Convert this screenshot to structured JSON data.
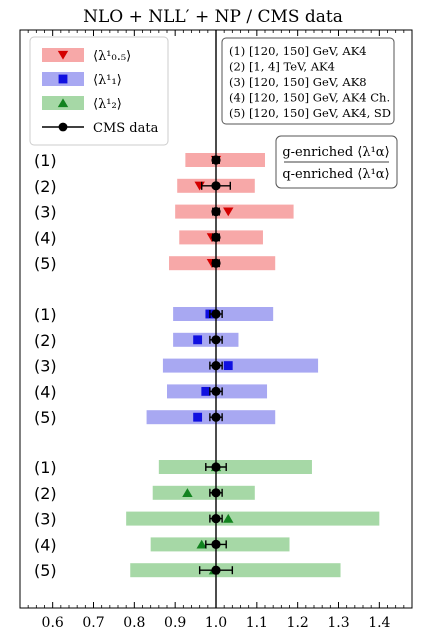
{
  "chart_data": {
    "type": "scatter",
    "title": "NLO + NLL′ + NP / CMS data",
    "xlabel": "",
    "ylabel": "",
    "xlim": [
      0.52,
      1.48
    ],
    "xticks": [
      "0.6",
      "0.7",
      "0.8",
      "0.9",
      "1.0",
      "1.1",
      "1.2",
      "1.3",
      "1.4"
    ],
    "grid": false,
    "reference_line": 1.0,
    "legend": {
      "placement": "top-left",
      "entries": [
        {
          "label": "⟨λ¹₀.₅⟩",
          "marker": "triangle-down",
          "color": "#d40000",
          "band": "#f7a8a8"
        },
        {
          "label": "⟨λ¹₁⟩",
          "marker": "square",
          "color": "#1010e0",
          "band": "#a8a8f2"
        },
        {
          "label": "⟨λ¹₂⟩",
          "marker": "triangle-up",
          "color": "#12831f",
          "band": "#a6d8a6"
        },
        {
          "label": "CMS data",
          "marker": "circle",
          "color": "#000000"
        }
      ]
    },
    "info_box": [
      "(1)  [120, 150] GeV, AK4",
      "(2)  [1, 4] TeV, AK4",
      "(3)  [120, 150] GeV, AK8",
      "(4)  [120, 150] GeV, AK4 Ch.",
      "(5)  [120, 150] GeV, AK4, SD"
    ],
    "enrich_box": [
      "g-enriched ⟨λ¹α⟩",
      "q-enriched ⟨λ¹α⟩"
    ],
    "groups": [
      {
        "name": "⟨λ¹₀.₅⟩",
        "rows": [
          {
            "label": "(1)",
            "band": [
              0.925,
              1.12
            ],
            "central": 1.0,
            "data": 1.0,
            "data_err": 0.008
          },
          {
            "label": "(2)",
            "band": [
              0.905,
              1.095
            ],
            "central": 0.96,
            "data": 1.0,
            "data_err": 0.035
          },
          {
            "label": "(3)",
            "band": [
              0.9,
              1.19
            ],
            "central": 1.03,
            "data": 1.0,
            "data_err": 0.008
          },
          {
            "label": "(4)",
            "band": [
              0.91,
              1.115
            ],
            "central": 0.99,
            "data": 1.0,
            "data_err": 0.008
          },
          {
            "label": "(5)",
            "band": [
              0.885,
              1.145
            ],
            "central": 0.99,
            "data": 1.0,
            "data_err": 0.008
          }
        ]
      },
      {
        "name": "⟨λ¹₁⟩",
        "rows": [
          {
            "label": "(1)",
            "band": [
              0.895,
              1.14
            ],
            "central": 0.985,
            "data": 1.0,
            "data_err": 0.015
          },
          {
            "label": "(2)",
            "band": [
              0.895,
              1.055
            ],
            "central": 0.955,
            "data": 1.0,
            "data_err": 0.015
          },
          {
            "label": "(3)",
            "band": [
              0.87,
              1.25
            ],
            "central": 1.03,
            "data": 1.0,
            "data_err": 0.015
          },
          {
            "label": "(4)",
            "band": [
              0.88,
              1.125
            ],
            "central": 0.975,
            "data": 1.0,
            "data_err": 0.015
          },
          {
            "label": "(5)",
            "band": [
              0.83,
              1.145
            ],
            "central": 0.955,
            "data": 1.0,
            "data_err": 0.015
          }
        ]
      },
      {
        "name": "⟨λ¹₂⟩",
        "rows": [
          {
            "label": "(1)",
            "band": [
              0.86,
              1.235
            ],
            "central": 1.0,
            "data": 1.0,
            "data_err": 0.025
          },
          {
            "label": "(2)",
            "band": [
              0.845,
              1.095
            ],
            "central": 0.93,
            "data": 1.0,
            "data_err": 0.015
          },
          {
            "label": "(3)",
            "band": [
              0.78,
              1.4
            ],
            "central": 1.03,
            "data": 1.0,
            "data_err": 0.015
          },
          {
            "label": "(4)",
            "band": [
              0.84,
              1.18
            ],
            "central": 0.965,
            "data": 1.0,
            "data_err": 0.025
          },
          {
            "label": "(5)",
            "band": [
              0.79,
              1.305
            ],
            "central": 0.995,
            "data": 1.0,
            "data_err": 0.04
          }
        ]
      }
    ]
  }
}
